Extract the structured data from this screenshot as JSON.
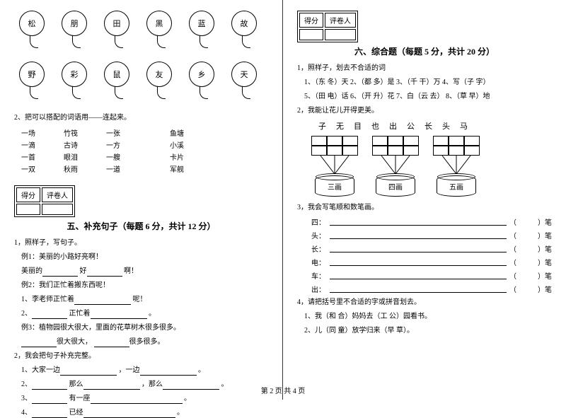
{
  "footer": "第 2 页 共 4 页",
  "left": {
    "balloons_row1": [
      "松",
      "朋",
      "田",
      "黑",
      "蓝",
      "故"
    ],
    "balloons_row2": [
      "野",
      "彩",
      "鼠",
      "友",
      "乡",
      "天"
    ],
    "q2_title": "2、把可以搭配的词语用——连起来。",
    "match": {
      "c1": [
        "一场",
        "一滴",
        "一首",
        "一双"
      ],
      "c2": [
        "竹筏",
        "古诗",
        "眼泪",
        "秋雨"
      ],
      "c3": [
        "一张",
        "一方",
        "一艘",
        "一道"
      ],
      "c4": [
        "鱼塘",
        "小溪",
        "卡片",
        "军舰"
      ]
    },
    "score_labels": {
      "a": "得分",
      "b": "评卷人"
    },
    "section5_title": "五、补充句子（每题 6 分，共计 12 分）",
    "s5": {
      "q1": "1，照样子，写句子。",
      "ex1_label": "例1：美丽的小路好亮啊！",
      "ex1_fill_a": "美丽的",
      "ex1_fill_b": "好",
      "ex1_fill_c": "啊！",
      "ex2_label": "例2：我们正忙着搬东西呢！",
      "ex2_a": "1、李老师正忙着",
      "ex2_a_end": "呢！",
      "ex2_b_a": "2、",
      "ex2_b_b": "正忙着",
      "ex2_b_end": "。",
      "ex3_label": "例3：植物园很大很大，里面的花草树木很多很多。",
      "ex3_a": "很大很大，",
      "ex3_b": "很多很多。",
      "q2": "2，我会把句子补充完整。",
      "l1_a": "1、大家一边",
      "l1_b": "，一边",
      "l1_c": "。",
      "l2_a": "2、",
      "l2_b": "那么",
      "l2_c": "，那么",
      "l2_d": "。",
      "l3_a": "3、",
      "l3_b": "有一座",
      "l3_c": "。",
      "l4_a": "4、",
      "l4_b": "已经",
      "l4_c": "。"
    }
  },
  "right": {
    "score_labels": {
      "a": "得分",
      "b": "评卷人"
    },
    "section6_title": "六、综合题（每题 5 分，共计 20 分）",
    "q1_title": "1，照样子，划去不合适的词",
    "q1_items": [
      "1、（东 冬）天    2、（都 多）是    3、（千 干）万    4、写（子 字）",
      "5、（田 电）话    6、（开 升）花    7、白（云 去）    8、（草 早）地"
    ],
    "q2_title": "2，我能让花儿开得更美。",
    "chars": [
      "子",
      "无",
      "目",
      "也",
      "出",
      "公",
      "长",
      "头",
      "马"
    ],
    "cyl_labels": [
      "三画",
      "四画",
      "五画"
    ],
    "q3_title": "3，我会写笔顺和数笔画。",
    "strokes": [
      {
        "ch": "四：",
        "end": "笔"
      },
      {
        "ch": "头：",
        "end": "笔"
      },
      {
        "ch": "长：",
        "end": "笔"
      },
      {
        "ch": "电：",
        "end": "笔"
      },
      {
        "ch": "车：",
        "end": "笔"
      },
      {
        "ch": "出：",
        "end": "笔"
      }
    ],
    "q4_title": "4，请把括号里不合适的字或拼音划去。",
    "q4_items": [
      "1、我（和 合）妈妈去（工 公）园看书。",
      "2、儿（同 童）放学归来（早 草）。"
    ]
  }
}
